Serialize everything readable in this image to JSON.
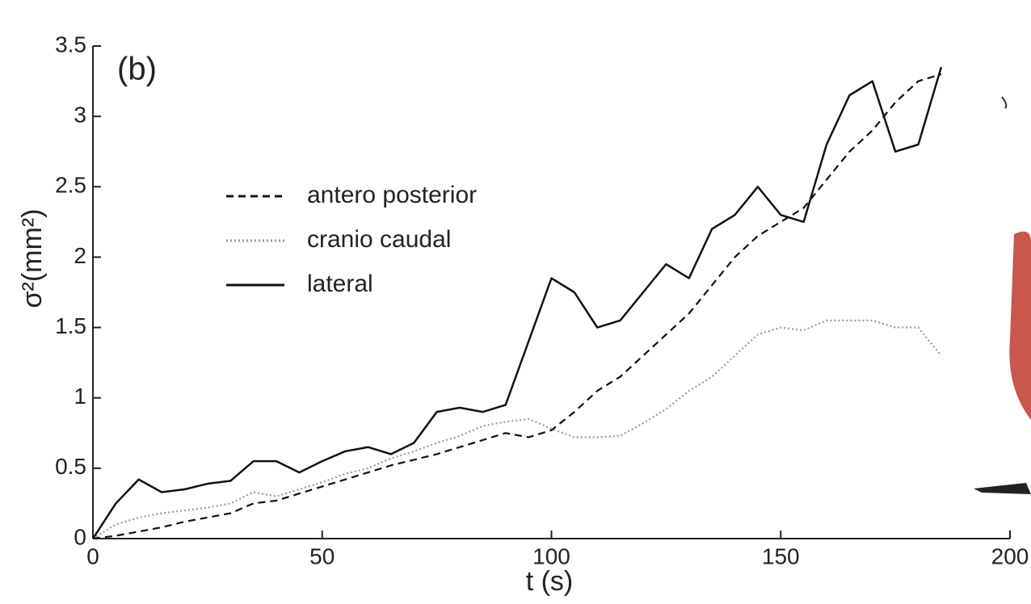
{
  "chart_data": {
    "type": "line",
    "panel_label": "(b)",
    "xlabel": "t (s)",
    "ylabel": "σ²(mm²)",
    "x": [
      0,
      5,
      10,
      15,
      20,
      25,
      30,
      35,
      40,
      45,
      50,
      55,
      60,
      65,
      70,
      75,
      80,
      85,
      90,
      95,
      100,
      105,
      110,
      115,
      120,
      125,
      130,
      135,
      140,
      145,
      150,
      155,
      160,
      165,
      170,
      175,
      180,
      185
    ],
    "series": [
      {
        "name": "antero posterior",
        "color": "#111111",
        "style": "dashed",
        "values": [
          0,
          0.02,
          0.05,
          0.08,
          0.12,
          0.15,
          0.18,
          0.25,
          0.27,
          0.32,
          0.37,
          0.42,
          0.47,
          0.52,
          0.56,
          0.6,
          0.65,
          0.7,
          0.75,
          0.72,
          0.77,
          0.9,
          1.05,
          1.15,
          1.3,
          1.45,
          1.6,
          1.8,
          2.0,
          2.15,
          2.25,
          2.35,
          2.55,
          2.75,
          2.9,
          3.1,
          3.25,
          3.3
        ]
      },
      {
        "name": "cranio caudal",
        "color": "#999999",
        "style": "dotted",
        "values": [
          0,
          0.1,
          0.15,
          0.18,
          0.2,
          0.22,
          0.25,
          0.33,
          0.3,
          0.35,
          0.4,
          0.46,
          0.5,
          0.57,
          0.62,
          0.68,
          0.73,
          0.8,
          0.83,
          0.85,
          0.78,
          0.72,
          0.72,
          0.73,
          0.82,
          0.92,
          1.05,
          1.15,
          1.3,
          1.45,
          1.5,
          1.48,
          1.55,
          1.55,
          1.55,
          1.5,
          1.5,
          1.3
        ]
      },
      {
        "name": "lateral",
        "color": "#111111",
        "style": "solid",
        "values": [
          0,
          0.25,
          0.42,
          0.33,
          0.35,
          0.39,
          0.41,
          0.55,
          0.55,
          0.47,
          0.55,
          0.62,
          0.65,
          0.6,
          0.68,
          0.9,
          0.93,
          0.9,
          0.95,
          1.4,
          1.85,
          1.75,
          1.5,
          1.55,
          1.75,
          1.95,
          1.85,
          2.2,
          2.3,
          2.5,
          2.3,
          2.25,
          2.8,
          3.15,
          3.25,
          2.75,
          2.8,
          3.35
        ]
      }
    ],
    "xlim": [
      0,
      200
    ],
    "ylim": [
      0,
      3.5
    ],
    "xticks": [
      0,
      50,
      100,
      150,
      200
    ],
    "yticks": [
      0,
      0.5,
      1,
      1.5,
      2,
      2.5,
      3,
      3.5
    ]
  }
}
